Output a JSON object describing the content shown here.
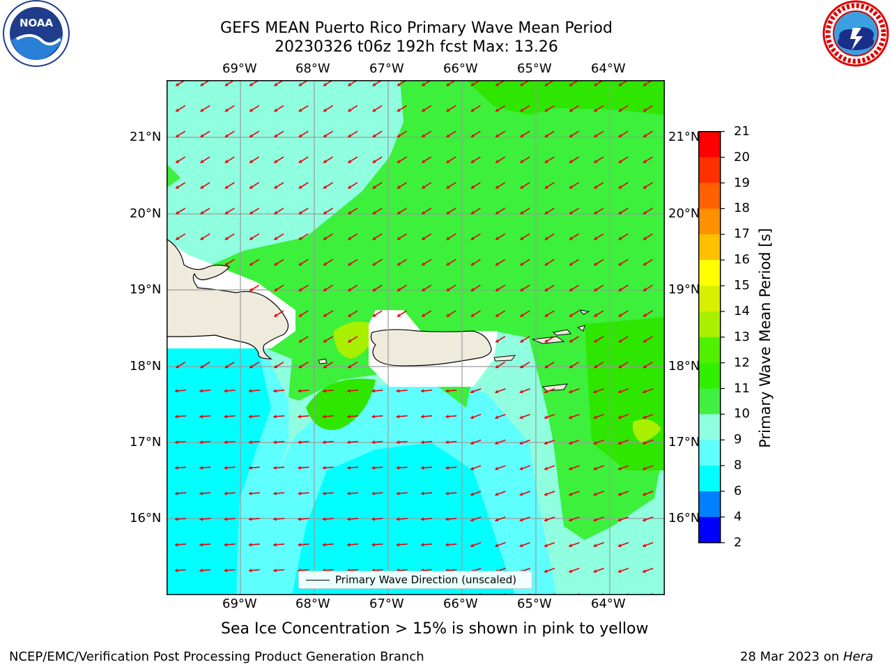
{
  "header": {
    "title_line1": "GEFS MEAN Puerto Rico Primary Wave Mean Period",
    "title_line2": "20230326 t06z 192h fcst   Max: 13.26"
  },
  "logos": {
    "left": "noaa-logo",
    "right": "national-weather-service-logo",
    "noaa_text": "NOAA"
  },
  "map": {
    "lon_labels": [
      "69°W",
      "68°W",
      "67°W",
      "66°W",
      "65°W",
      "64°W"
    ],
    "lat_labels": [
      "21°N",
      "20°N",
      "19°N",
      "18°N",
      "17°N",
      "16°N"
    ],
    "wave_direction": "from east-northeast, arrows pointing west-southwest",
    "arrow_color": "#e8000b",
    "legend_label": "Primary Wave Direction (unscaled)"
  },
  "colorbar": {
    "title": "Primary Wave Mean Period [s]",
    "ticks": [
      "21",
      "20",
      "19",
      "18",
      "17",
      "16",
      "15",
      "14",
      "13",
      "12",
      "11",
      "10",
      "9",
      "8",
      "6",
      "4",
      "2"
    ],
    "colors": [
      "#ff0000",
      "#ff3000",
      "#ff6000",
      "#ff9000",
      "#ffc000",
      "#ffff00",
      "#d8f000",
      "#a8f000",
      "#50f000",
      "#30f000",
      "#40f040",
      "#90ffe0",
      "#60ffff",
      "#00ffff",
      "#0080ff",
      "#0000ff"
    ]
  },
  "footer": {
    "ice_note": "Sea Ice Concentration > 15% is shown in pink to yellow",
    "left": "NCEP/EMC/Verification Post Processing Product Generation Branch",
    "right_prefix": "28 Mar 2023 on ",
    "right_host": "Hera"
  }
}
